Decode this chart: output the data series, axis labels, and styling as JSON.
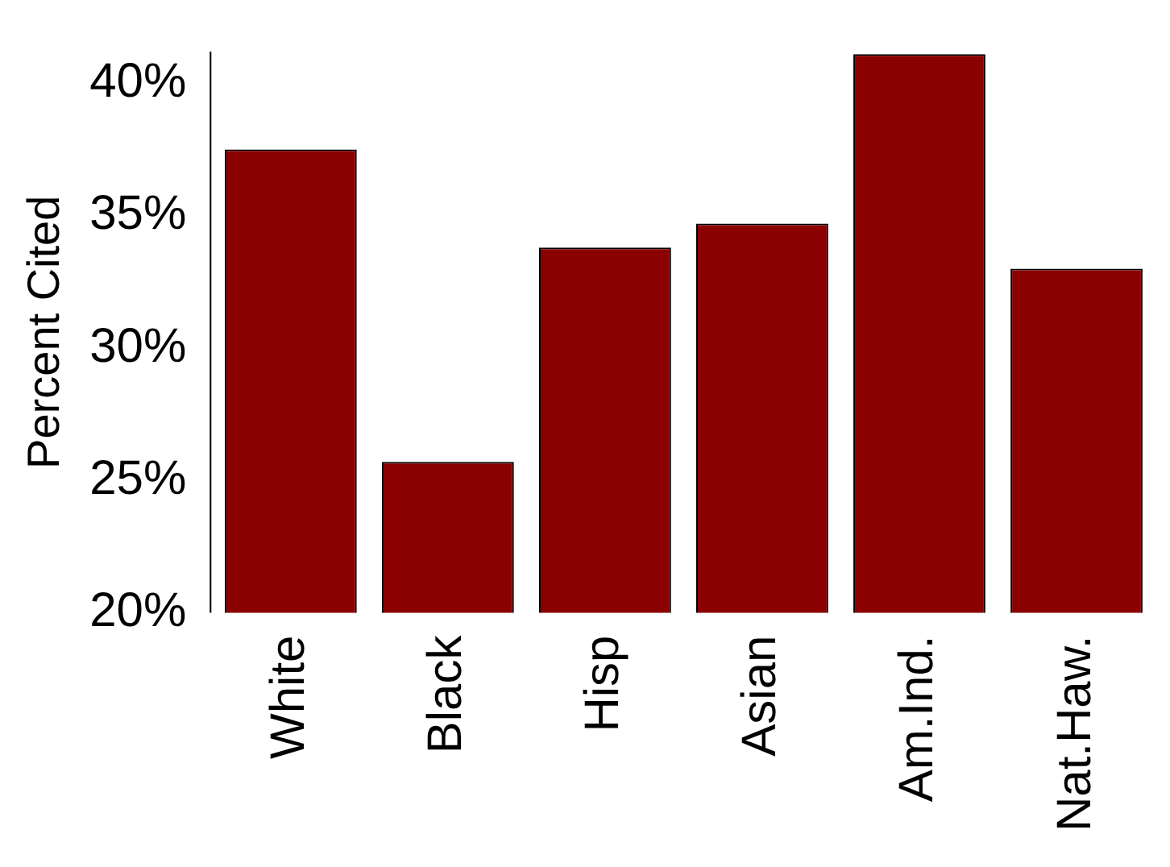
{
  "chart_data": {
    "type": "bar",
    "ylabel": "Percent Cited",
    "categories": [
      "White",
      "Black",
      "Hisp",
      "Asian",
      "Am.Ind.",
      "Nat.Haw."
    ],
    "values": [
      37.5,
      25.7,
      33.8,
      34.7,
      41.1,
      33.0
    ],
    "color": "#8b0000",
    "ylim": [
      20,
      41.2
    ],
    "yticks": [
      {
        "value": 20,
        "label": "20%"
      },
      {
        "value": 25,
        "label": "25%"
      },
      {
        "value": 30,
        "label": "30%"
      },
      {
        "value": 35,
        "label": "35%"
      },
      {
        "value": 40,
        "label": "40%"
      }
    ],
    "grid": false,
    "legend": false
  }
}
